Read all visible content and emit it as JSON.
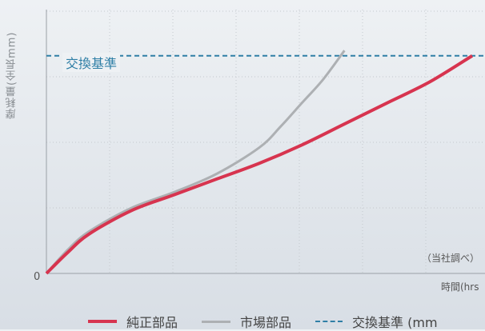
{
  "chart_data": {
    "type": "line",
    "ylabel": "摩耗量(全長mm)",
    "xlabel": "時間(hrs",
    "y_zero_label": "0",
    "note": "（当社調べ）",
    "threshold": {
      "label": "交換基準",
      "y": 0.83
    },
    "series": [
      {
        "name": "純正部品",
        "color": "#d7344f",
        "x": [
          0,
          0.05,
          0.1,
          0.2,
          0.3,
          0.4,
          0.5,
          0.6,
          0.7,
          0.8,
          0.9,
          1.0
        ],
        "y": [
          0,
          0.08,
          0.15,
          0.24,
          0.3,
          0.36,
          0.42,
          0.49,
          0.57,
          0.65,
          0.73,
          0.83
        ]
      },
      {
        "name": "市場部品",
        "color": "#adb0b3",
        "x": [
          0,
          0.05,
          0.1,
          0.2,
          0.3,
          0.4,
          0.5,
          0.55,
          0.6,
          0.65,
          0.7
        ],
        "y": [
          0,
          0.09,
          0.16,
          0.25,
          0.31,
          0.38,
          0.48,
          0.56,
          0.65,
          0.74,
          0.85
        ]
      }
    ],
    "ylim": [
      0,
      1
    ],
    "xlim": [
      0,
      1
    ],
    "grid": true
  },
  "legend": {
    "genuine": "純正部品",
    "market": "市場部品",
    "threshold": "交換基準 (mm"
  }
}
